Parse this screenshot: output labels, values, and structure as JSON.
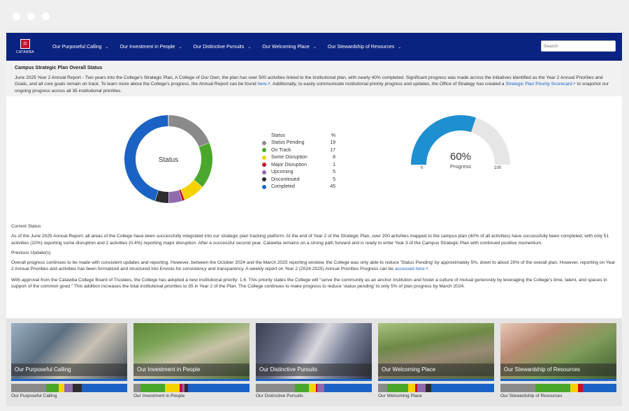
{
  "nav": {
    "logo_text": "CATAWBA",
    "items": [
      "Our Purposeful Calling",
      "Our Investment in People",
      "Our Distinctive Pursuits",
      "Our Welcoming Place",
      "Our Stewardship of Resources"
    ],
    "search_placeholder": "Search"
  },
  "overview": {
    "title": "Campus Strategic Plan Overall Status",
    "text_1": "June 2025 Year 2 Annual Report - Two years into the College's Strategic Plan, A College of Our Own, the plan has over 500 activities linked to the institutional plan, with nearly 40% completed. Significant progress was made across the initiatives identified as the Year 2 Annual Priorities and Goals, and all core goals remain on track. To learn more about the College's progress, the Annual Report can be found ",
    "link_1": "here",
    "text_2": ". Additionally, to easily communicate institutional priority progress and updates, the Office of Strategy has created a ",
    "link_2": "Strategic Plan Priority Scorecard",
    "text_3": " to snapshot our ongoing progress across all 35 institutional priorities."
  },
  "donut": {
    "center_label": "Status"
  },
  "legend": {
    "header_status": "Status",
    "header_pct": "%",
    "items": [
      {
        "label": "Status Pending",
        "value": 19,
        "color": "#8a8a8a"
      },
      {
        "label": "On Track",
        "value": 17,
        "color": "#4aa72b"
      },
      {
        "label": "Some Disruption",
        "value": 8,
        "color": "#f5d200"
      },
      {
        "label": "Major Disruption",
        "value": 1,
        "color": "#c8102e"
      },
      {
        "label": "Upcoming",
        "value": 5,
        "color": "#8e6aae"
      },
      {
        "label": "Discontinued",
        "value": 5,
        "color": "#2e2e2e"
      },
      {
        "label": "Completed",
        "value": 45,
        "color": "#1a63c4"
      }
    ]
  },
  "gauge": {
    "value": 60,
    "value_text": "60%",
    "label": "Progress",
    "min": "0",
    "max": "100",
    "fill_color": "#1e8fd0",
    "track_color": "#e6e6e6"
  },
  "status_text": {
    "heading_current": "Current Status",
    "current": "As of the June 2025 Annual Report, all areas of the College have been successfully integrated into our strategic plan tracking platform. At the end of Year 2 of the Strategic Plan, over 200 activities mapped to the campus plan (40% of all activities) have successfully been completed, with only 51 activities (10%) reporting some disruption and 2 activities (0.4%) reporting major disruption.  After a successful second year, Catawba remains on a strong path forward and is ready to enter Year 3 of the Campus Strategic Plan with continued positive momentum.",
    "heading_previous": "Previous Update(s)",
    "previous_1a": "Overall progress continues to be made with consistent updates and reporting. However, between the October 2024 and the March 2025 reporting window, the College was only able to reduce 'Status Pending' by approximately 5%, down to about 20% of the overall plan.  However, reporting on Year 2 Annual Priorities and activities has been formalized and structured into Envisio for consistency and transparency.  A weekly report on Year 2 (2024-2025) Annual Priorities Progress can be ",
    "previous_1_link": "accessed here",
    "previous_1b": ".",
    "previous_2": "With approval from the Catawba College Board of Trustees, the College has adopted a new institutional priority: 1.6.  This priority states the College will \"serve the community as an anchor institution and foster a culture of mutual generosity by leveraging the College's time, talent, and spaces in support of the common good.\" This addition increases the total institutional priorities to 35 in Year 2 of the Plan.  The College continues to make progress to reduce 'status pending' to only 5% of plan progress by March 2024."
  },
  "cards": [
    {
      "caption": "Our Purposeful Calling",
      "label": "Our Purposeful Calling",
      "bar": [
        {
          "v": 30,
          "c": "#8a8a8a"
        },
        {
          "v": 11,
          "c": "#4aa72b"
        },
        {
          "v": 5,
          "c": "#f5d200"
        },
        {
          "v": 7,
          "c": "#8e6aae"
        },
        {
          "v": 8,
          "c": "#2e2e2e"
        },
        {
          "v": 39,
          "c": "#1a63c4"
        }
      ]
    },
    {
      "caption": "Our Investment in People",
      "label": "Our Investment in People",
      "bar": [
        {
          "v": 6,
          "c": "#8a8a8a"
        },
        {
          "v": 21,
          "c": "#4aa72b"
        },
        {
          "v": 13,
          "c": "#f5d200"
        },
        {
          "v": 2,
          "c": "#c8102e"
        },
        {
          "v": 2,
          "c": "#8e6aae"
        },
        {
          "v": 3,
          "c": "#2e2e2e"
        },
        {
          "v": 53,
          "c": "#1a63c4"
        }
      ]
    },
    {
      "caption": "Our Distinctive Pursuits",
      "label": "Our Distinctive Pursuits",
      "bar": [
        {
          "v": 34,
          "c": "#8a8a8a"
        },
        {
          "v": 12,
          "c": "#4aa72b"
        },
        {
          "v": 6,
          "c": "#f5d200"
        },
        {
          "v": 1,
          "c": "#c8102e"
        },
        {
          "v": 6,
          "c": "#8e6aae"
        },
        {
          "v": 41,
          "c": "#1a63c4"
        }
      ]
    },
    {
      "caption": "Our Welcoming Place",
      "label": "Our Welcoming Place",
      "bar": [
        {
          "v": 8,
          "c": "#8a8a8a"
        },
        {
          "v": 18,
          "c": "#4aa72b"
        },
        {
          "v": 6,
          "c": "#f5d200"
        },
        {
          "v": 2,
          "c": "#c8102e"
        },
        {
          "v": 7,
          "c": "#8e6aae"
        },
        {
          "v": 5,
          "c": "#2e2e2e"
        },
        {
          "v": 54,
          "c": "#1a63c4"
        }
      ]
    },
    {
      "caption": "Our Stewardship of Resources",
      "label": "Our Stewardship of Resources",
      "bar": [
        {
          "v": 30,
          "c": "#8a8a8a"
        },
        {
          "v": 30,
          "c": "#4aa72b"
        },
        {
          "v": 7,
          "c": "#f5d200"
        },
        {
          "v": 4,
          "c": "#c8102e"
        },
        {
          "v": 29,
          "c": "#1a63c4"
        }
      ]
    }
  ]
}
